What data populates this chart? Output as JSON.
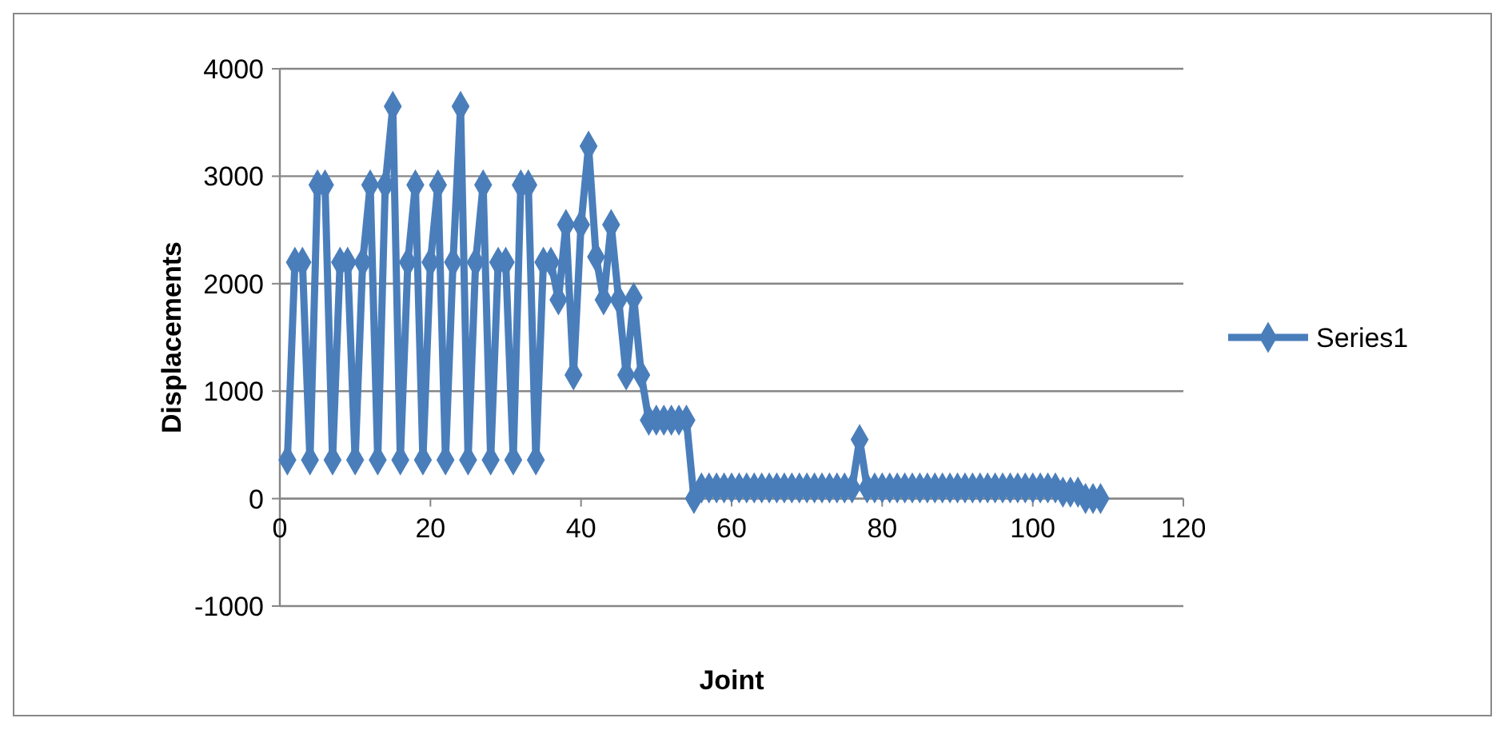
{
  "chart_data": {
    "type": "line",
    "xlabel": "Joint",
    "ylabel": "Displacements",
    "x": [
      1,
      2,
      3,
      4,
      5,
      6,
      7,
      8,
      9,
      10,
      11,
      12,
      13,
      14,
      15,
      16,
      17,
      18,
      19,
      20,
      21,
      22,
      23,
      24,
      25,
      26,
      27,
      28,
      29,
      30,
      31,
      32,
      33,
      34,
      35,
      36,
      37,
      38,
      39,
      40,
      41,
      42,
      43,
      44,
      45,
      46,
      47,
      48,
      49,
      50,
      51,
      52,
      53,
      54,
      55,
      56,
      57,
      58,
      59,
      60,
      61,
      62,
      63,
      64,
      65,
      66,
      67,
      68,
      69,
      70,
      71,
      72,
      73,
      74,
      75,
      76,
      77,
      78,
      79,
      80,
      81,
      82,
      83,
      84,
      85,
      86,
      87,
      88,
      89,
      90,
      91,
      92,
      93,
      94,
      95,
      96,
      97,
      98,
      99,
      100,
      101,
      102,
      103,
      104,
      105,
      106,
      107,
      108,
      109
    ],
    "series": [
      {
        "name": "Series1",
        "color": "#4a7ebb",
        "values": [
          360,
          2200,
          2200,
          360,
          2920,
          2920,
          360,
          2200,
          2200,
          360,
          2200,
          2920,
          360,
          2920,
          3650,
          360,
          2200,
          2920,
          360,
          2200,
          2920,
          360,
          2200,
          3650,
          360,
          2200,
          2920,
          360,
          2200,
          2200,
          360,
          2920,
          2920,
          360,
          2200,
          2200,
          1850,
          2550,
          1150,
          2550,
          3280,
          2250,
          1850,
          2550,
          1850,
          1150,
          1870,
          1150,
          730,
          730,
          730,
          730,
          730,
          730,
          0,
          100,
          100,
          100,
          100,
          100,
          100,
          100,
          100,
          100,
          100,
          100,
          100,
          100,
          100,
          100,
          100,
          100,
          100,
          100,
          100,
          100,
          550,
          100,
          100,
          100,
          100,
          100,
          100,
          100,
          100,
          100,
          100,
          100,
          100,
          100,
          100,
          100,
          100,
          100,
          100,
          100,
          100,
          100,
          100,
          100,
          100,
          100,
          100,
          60,
          60,
          60,
          0,
          0,
          0
        ]
      }
    ],
    "xlim": [
      0,
      120
    ],
    "xticks": [
      0,
      20,
      40,
      60,
      80,
      100,
      120
    ],
    "ylim": [
      -1000,
      4000
    ],
    "yticks": [
      -1000,
      0,
      1000,
      2000,
      3000,
      4000
    ],
    "grid": "y",
    "legend": "right",
    "marker": "diamond",
    "line_style": "solid"
  }
}
